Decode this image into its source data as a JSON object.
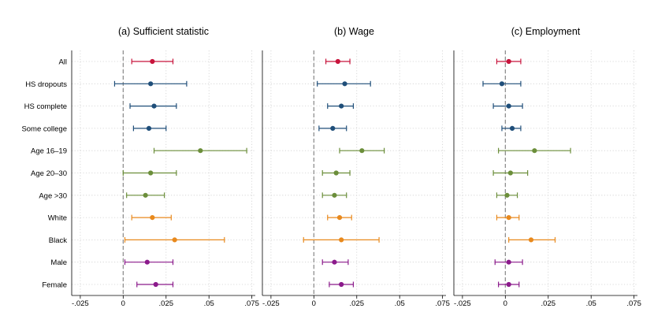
{
  "chart_data": {
    "type": "scatter",
    "subtype": "coefficient-plot-with-confidence-intervals",
    "categories": [
      "All",
      "HS dropouts",
      "HS complete",
      "Some college",
      "Age 16–19",
      "Age 20–30",
      "Age >30",
      "White",
      "Black",
      "Male",
      "Female"
    ],
    "category_colors": [
      "#c8143c",
      "#1f4e79",
      "#1f4e79",
      "#1f4e79",
      "#6b8e3a",
      "#6b8e3a",
      "#6b8e3a",
      "#e8891d",
      "#e8891d",
      "#8b1a8b",
      "#8b1a8b"
    ],
    "xlim": [
      -0.03,
      0.077
    ],
    "xticks": [
      -0.025,
      0,
      0.025,
      0.05,
      0.075
    ],
    "xtick_labels": [
      "-.025",
      "0",
      ".025",
      ".05",
      ".075"
    ],
    "reference_line": {
      "x": 0,
      "style": "dashed",
      "color": "#888888"
    },
    "grid": true,
    "panels": [
      {
        "title": "(a) Sufficient statistic",
        "estimates": [
          0.017,
          0.016,
          0.018,
          0.015,
          0.045,
          0.016,
          0.013,
          0.017,
          0.03,
          0.014,
          0.019
        ],
        "ci_low": [
          0.005,
          -0.005,
          0.004,
          0.006,
          0.018,
          0.0,
          0.002,
          0.005,
          0.001,
          0.001,
          0.008
        ],
        "ci_high": [
          0.029,
          0.037,
          0.031,
          0.025,
          0.072,
          0.031,
          0.024,
          0.028,
          0.059,
          0.029,
          0.029
        ]
      },
      {
        "title": "(b) Wage",
        "estimates": [
          0.014,
          0.018,
          0.016,
          0.011,
          0.028,
          0.013,
          0.012,
          0.015,
          0.016,
          0.012,
          0.016
        ],
        "ci_low": [
          0.007,
          0.002,
          0.008,
          0.003,
          0.015,
          0.005,
          0.005,
          0.008,
          -0.006,
          0.005,
          0.009
        ],
        "ci_high": [
          0.021,
          0.033,
          0.023,
          0.019,
          0.041,
          0.021,
          0.019,
          0.022,
          0.038,
          0.02,
          0.023
        ]
      },
      {
        "title": "(c) Employment",
        "estimates": [
          0.002,
          -0.002,
          0.002,
          0.004,
          0.017,
          0.003,
          0.001,
          0.002,
          0.015,
          0.002,
          0.002
        ],
        "ci_low": [
          -0.005,
          -0.013,
          -0.007,
          -0.002,
          -0.004,
          -0.007,
          -0.005,
          -0.005,
          0.002,
          -0.006,
          -0.004
        ],
        "ci_high": [
          0.009,
          0.009,
          0.01,
          0.009,
          0.038,
          0.013,
          0.007,
          0.008,
          0.029,
          0.01,
          0.008
        ]
      }
    ]
  }
}
